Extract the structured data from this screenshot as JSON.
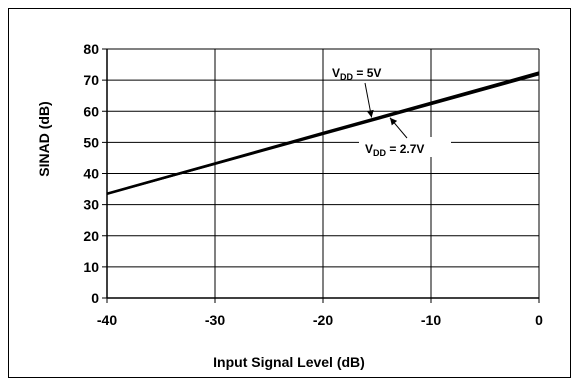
{
  "chart_data": {
    "type": "line",
    "xlabel": "Input Signal Level (dB)",
    "ylabel": "SINAD (dB)",
    "xlim": [
      -40,
      0
    ],
    "ylim": [
      0,
      80
    ],
    "x_ticks": [
      -40,
      -30,
      -20,
      -10,
      0
    ],
    "y_ticks": [
      0,
      10,
      20,
      30,
      40,
      50,
      60,
      70,
      80
    ],
    "grid": true,
    "series": [
      {
        "name": "VDD = 5V",
        "x": [
          -40,
          -30,
          -20,
          -10,
          0
        ],
        "y": [
          33.5,
          43.2,
          53.0,
          62.7,
          72.4
        ]
      },
      {
        "name": "VDD = 2.7V",
        "x": [
          -40,
          -30,
          -20,
          -10,
          0
        ],
        "y": [
          33.5,
          43.0,
          52.6,
          62.2,
          71.8
        ]
      }
    ],
    "annotations": [
      {
        "main": "V",
        "sub": "DD",
        "rest": " = 5V"
      },
      {
        "main": "V",
        "sub": "DD",
        "rest": " = 2.7V"
      }
    ]
  }
}
